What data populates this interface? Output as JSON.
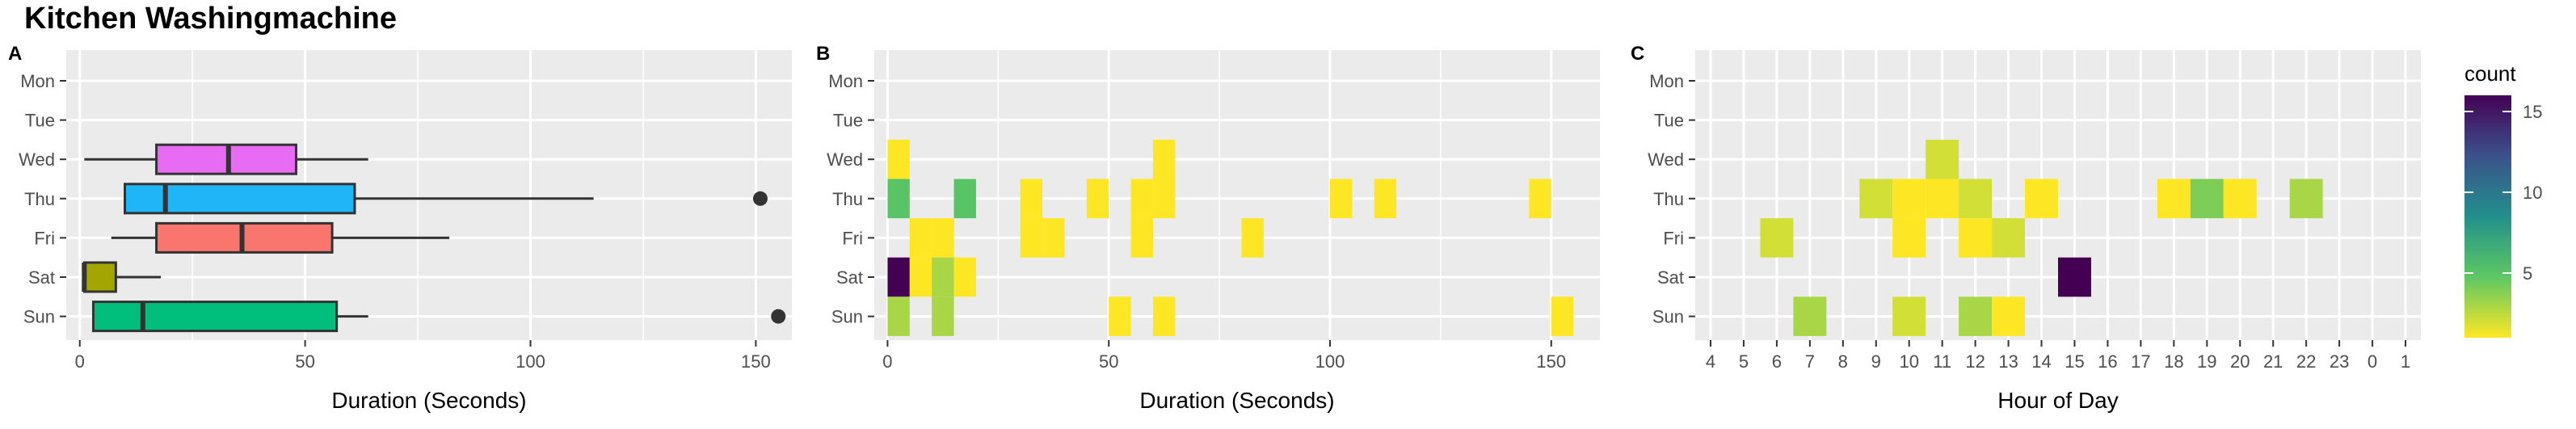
{
  "title": "Kitchen Washingmachine",
  "colors": {
    "panel_bg": "#EBEBEB",
    "grid": "#FFFFFF",
    "viridis": [
      "#440154",
      "#3B528B",
      "#21908C",
      "#5DC863",
      "#FDE725"
    ],
    "day_fill": {
      "Wed": "#E86BF3",
      "Thu": "#1FB5F6",
      "Fri": "#F8766D",
      "Sat": "#A3A500",
      "Sun": "#00BF7D"
    }
  },
  "legend": {
    "title": "count",
    "min": 1,
    "max": 16,
    "breaks": [
      5,
      10,
      15
    ]
  },
  "chart_data": [
    {
      "panel": "A",
      "type": "boxplot",
      "xlabel": "Duration (Seconds)",
      "ylabel": "",
      "xlim": [
        -3,
        158
      ],
      "x_ticks": [
        0,
        50,
        100,
        150
      ],
      "categories": [
        "Mon",
        "Tue",
        "Wed",
        "Thu",
        "Fri",
        "Sat",
        "Sun"
      ],
      "boxes": [
        {
          "day": "Wed",
          "lower_whisker": 1,
          "q1": 17,
          "median": 33,
          "q3": 48,
          "upper_whisker": 64,
          "outliers": []
        },
        {
          "day": "Thu",
          "lower_whisker": 10,
          "q1": 10,
          "median": 19,
          "q3": 61,
          "upper_whisker": 114,
          "outliers": [
            151
          ]
        },
        {
          "day": "Fri",
          "lower_whisker": 7,
          "q1": 17,
          "median": 36,
          "q3": 56,
          "upper_whisker": 82,
          "outliers": []
        },
        {
          "day": "Sat",
          "lower_whisker": 1,
          "q1": 1,
          "median": 1,
          "q3": 8,
          "upper_whisker": 18,
          "outliers": []
        },
        {
          "day": "Sun",
          "lower_whisker": 3,
          "q1": 3,
          "median": 14,
          "q3": 57,
          "upper_whisker": 64,
          "outliers": [
            155
          ]
        }
      ]
    },
    {
      "panel": "B",
      "type": "heatmap",
      "xlabel": "Duration (Seconds)",
      "ylabel": "",
      "xlim": [
        -3,
        161
      ],
      "x_ticks": [
        0,
        50,
        100,
        150
      ],
      "bin_width": 5,
      "categories": [
        "Mon",
        "Tue",
        "Wed",
        "Thu",
        "Fri",
        "Sat",
        "Sun"
      ],
      "cells": [
        {
          "day": "Wed",
          "x": 0,
          "count": 1
        },
        {
          "day": "Wed",
          "x": 60,
          "count": 1
        },
        {
          "day": "Thu",
          "x": 0,
          "count": 5
        },
        {
          "day": "Thu",
          "x": 15,
          "count": 5
        },
        {
          "day": "Thu",
          "x": 30,
          "count": 1
        },
        {
          "day": "Thu",
          "x": 45,
          "count": 1
        },
        {
          "day": "Thu",
          "x": 55,
          "count": 1
        },
        {
          "day": "Thu",
          "x": 60,
          "count": 1
        },
        {
          "day": "Thu",
          "x": 100,
          "count": 1
        },
        {
          "day": "Thu",
          "x": 110,
          "count": 1
        },
        {
          "day": "Thu",
          "x": 145,
          "count": 1
        },
        {
          "day": "Fri",
          "x": 5,
          "count": 1
        },
        {
          "day": "Fri",
          "x": 10,
          "count": 1
        },
        {
          "day": "Fri",
          "x": 30,
          "count": 1
        },
        {
          "day": "Fri",
          "x": 35,
          "count": 1
        },
        {
          "day": "Fri",
          "x": 55,
          "count": 1
        },
        {
          "day": "Fri",
          "x": 80,
          "count": 1
        },
        {
          "day": "Sat",
          "x": 0,
          "count": 16
        },
        {
          "day": "Sat",
          "x": 5,
          "count": 1
        },
        {
          "day": "Sat",
          "x": 10,
          "count": 3
        },
        {
          "day": "Sat",
          "x": 15,
          "count": 1
        },
        {
          "day": "Sun",
          "x": 0,
          "count": 3
        },
        {
          "day": "Sun",
          "x": 10,
          "count": 3
        },
        {
          "day": "Sun",
          "x": 50,
          "count": 1
        },
        {
          "day": "Sun",
          "x": 60,
          "count": 1
        },
        {
          "day": "Sun",
          "x": 150,
          "count": 1
        }
      ]
    },
    {
      "panel": "C",
      "type": "heatmap",
      "xlabel": "Hour of Day",
      "ylabel": "",
      "x_categories": [
        "4",
        "5",
        "6",
        "7",
        "8",
        "9",
        "10",
        "11",
        "12",
        "13",
        "14",
        "15",
        "16",
        "17",
        "18",
        "19",
        "20",
        "21",
        "22",
        "23",
        "0",
        "1"
      ],
      "categories": [
        "Mon",
        "Tue",
        "Wed",
        "Thu",
        "Fri",
        "Sat",
        "Sun"
      ],
      "cells": [
        {
          "day": "Wed",
          "hour": "11",
          "count": 2
        },
        {
          "day": "Thu",
          "hour": "9",
          "count": 2
        },
        {
          "day": "Thu",
          "hour": "10",
          "count": 1
        },
        {
          "day": "Thu",
          "hour": "11",
          "count": 1
        },
        {
          "day": "Thu",
          "hour": "12",
          "count": 2
        },
        {
          "day": "Thu",
          "hour": "14",
          "count": 1
        },
        {
          "day": "Thu",
          "hour": "18",
          "count": 1
        },
        {
          "day": "Thu",
          "hour": "19",
          "count": 4
        },
        {
          "day": "Thu",
          "hour": "20",
          "count": 1
        },
        {
          "day": "Thu",
          "hour": "22",
          "count": 3
        },
        {
          "day": "Fri",
          "hour": "6",
          "count": 2
        },
        {
          "day": "Fri",
          "hour": "10",
          "count": 1
        },
        {
          "day": "Fri",
          "hour": "12",
          "count": 1
        },
        {
          "day": "Fri",
          "hour": "13",
          "count": 2
        },
        {
          "day": "Sat",
          "hour": "15",
          "count": 16
        },
        {
          "day": "Sun",
          "hour": "7",
          "count": 3
        },
        {
          "day": "Sun",
          "hour": "10",
          "count": 2
        },
        {
          "day": "Sun",
          "hour": "12",
          "count": 3
        },
        {
          "day": "Sun",
          "hour": "13",
          "count": 1
        }
      ]
    }
  ]
}
